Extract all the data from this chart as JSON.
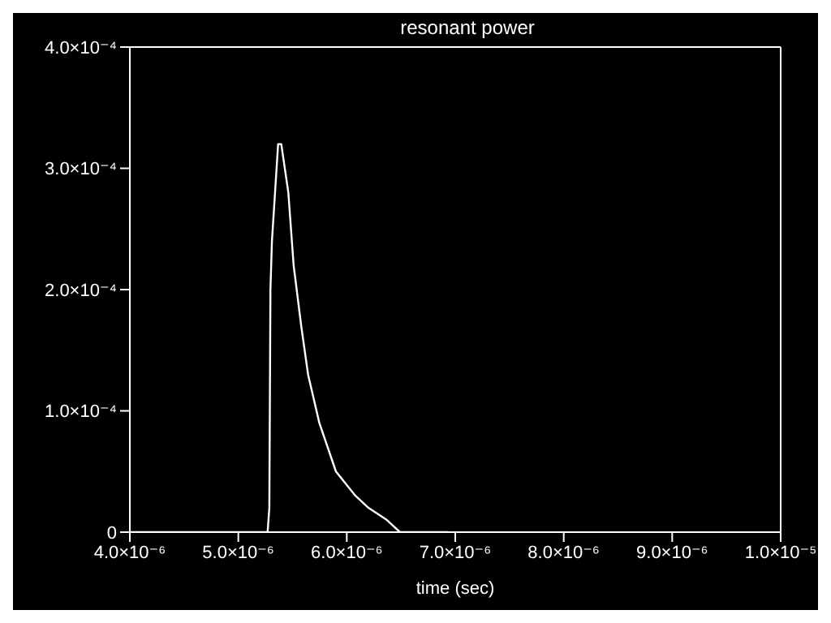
{
  "chart_data": {
    "type": "line",
    "title": "resonant power",
    "xlabel": "time (sec)",
    "x": [
      4e-06,
      5.171e-06,
      5.27e-06,
      5.286e-06,
      5.296e-06,
      5.31e-06,
      5.367e-06,
      5.396e-06,
      5.461e-06,
      5.51e-06,
      5.58e-06,
      5.643e-06,
      5.747e-06,
      5.9e-06,
      6.08e-06,
      6.2e-06,
      6.37e-06,
      6.49e-06,
      6.7e-06,
      6.94e-06
    ],
    "series": [
      {
        "color": "#ffffff",
        "values": [
          0,
          0,
          0,
          2e-05,
          0.0002,
          0.00024,
          0.00032,
          0.00032,
          0.00028,
          0.00022,
          0.00017,
          0.00013,
          9e-05,
          5e-05,
          3e-05,
          2e-05,
          1e-05,
          0,
          0,
          0
        ]
      }
    ],
    "xlim": [
      4e-06,
      1e-05
    ],
    "xticks": [
      {
        "value": 4e-06,
        "label": "4.0×10⁻⁶"
      },
      {
        "value": 5e-06,
        "label": "5.0×10⁻⁶"
      },
      {
        "value": 6e-06,
        "label": "6.0×10⁻⁶"
      },
      {
        "value": 7e-06,
        "label": "7.0×10⁻⁶"
      },
      {
        "value": 8e-06,
        "label": "8.0×10⁻⁶"
      },
      {
        "value": 9e-06,
        "label": "9.0×10⁻⁶"
      },
      {
        "value": 1e-05,
        "label": "1.0×10⁻⁵"
      }
    ],
    "ylim": [
      0,
      0.0004
    ],
    "yticks": [
      {
        "value": 0,
        "label": "0"
      },
      {
        "value": 0.0001,
        "label": "1.0×10⁻⁴"
      },
      {
        "value": 0.0002,
        "label": "2.0×10⁻⁴"
      },
      {
        "value": 0.0003,
        "label": "3.0×10⁻⁴"
      },
      {
        "value": 0.0004,
        "label": "4.0×10⁻⁴"
      }
    ],
    "grid": false,
    "legend": false,
    "marker": "none",
    "line_style": "solid"
  }
}
